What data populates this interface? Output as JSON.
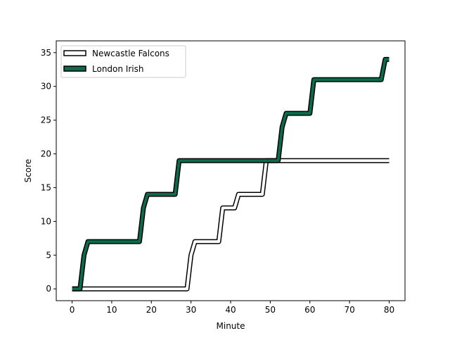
{
  "chart_data": {
    "type": "line",
    "title": "",
    "xlabel": "Minute",
    "ylabel": "Score",
    "xlim": [
      -4,
      84
    ],
    "ylim": [
      -1.75,
      36.75
    ],
    "xticks": [
      0,
      10,
      20,
      30,
      40,
      50,
      60,
      70,
      80
    ],
    "yticks": [
      0,
      5,
      10,
      15,
      20,
      25,
      30,
      35
    ],
    "grid": false,
    "legend_position": "top-left",
    "series": [
      {
        "name": "Newcastle Falcons",
        "style": "outline",
        "color": "#ffffff",
        "edge_color": "#000000",
        "points": [
          [
            0,
            0
          ],
          [
            29,
            0
          ],
          [
            30,
            5
          ],
          [
            31,
            7
          ],
          [
            37,
            7
          ],
          [
            38,
            12
          ],
          [
            41,
            12
          ],
          [
            42,
            14
          ],
          [
            48,
            14
          ],
          [
            49,
            19
          ],
          [
            80,
            19
          ]
        ]
      },
      {
        "name": "London Irish",
        "style": "outline",
        "color": "#0b6b4b",
        "edge_color": "#000000",
        "points": [
          [
            0,
            0
          ],
          [
            2,
            0
          ],
          [
            3,
            5
          ],
          [
            4,
            7
          ],
          [
            17,
            7
          ],
          [
            18,
            12
          ],
          [
            19,
            14
          ],
          [
            26,
            14
          ],
          [
            27,
            19
          ],
          [
            52,
            19
          ],
          [
            53,
            24
          ],
          [
            54,
            26
          ],
          [
            60,
            26
          ],
          [
            61,
            31
          ],
          [
            78,
            31
          ],
          [
            79,
            34
          ],
          [
            80,
            34
          ]
        ]
      }
    ]
  }
}
